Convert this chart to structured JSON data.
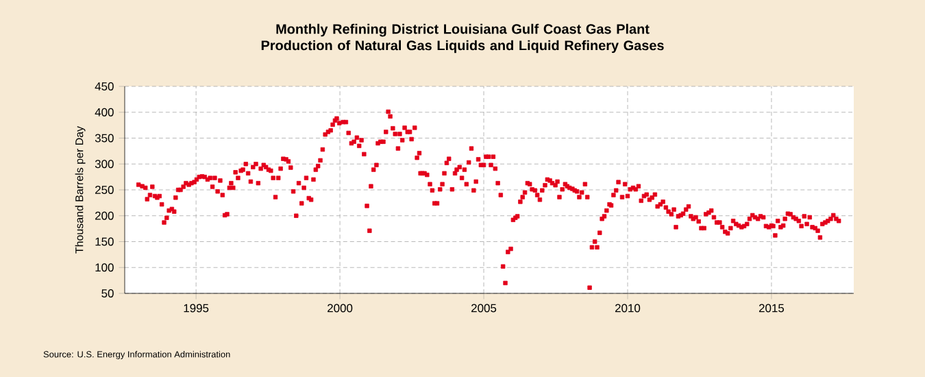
{
  "chart_data": {
    "type": "scatter",
    "title": "Monthly Refining District Louisiana Gulf Coast Gas Plant Production of Natural Gas Liquids and Liquid Refinery Gases",
    "ylabel": "Thousand Barrels per Day",
    "annotations": [
      "Source: U.S. Energy Information Administration"
    ],
    "x": [
      1993.0,
      1993.13,
      1993.24,
      1993.3,
      1993.4,
      1993.48,
      1993.57,
      1993.65,
      1993.73,
      1993.81,
      1993.89,
      1993.98,
      1994.06,
      1994.16,
      1994.24,
      1994.29,
      1994.38,
      1994.46,
      1994.56,
      1994.65,
      1994.75,
      1994.84,
      1994.94,
      1995.02,
      1995.11,
      1995.21,
      1995.3,
      1995.4,
      1995.49,
      1995.57,
      1995.65,
      1995.75,
      1995.84,
      1995.92,
      1996.0,
      1996.08,
      1996.16,
      1996.22,
      1996.29,
      1996.37,
      1996.46,
      1996.56,
      1996.63,
      1996.73,
      1996.81,
      1996.9,
      1996.98,
      1997.08,
      1997.16,
      1997.25,
      1997.35,
      1997.43,
      1997.52,
      1997.6,
      1997.68,
      1997.76,
      1997.86,
      1997.94,
      1998.03,
      1998.13,
      1998.21,
      1998.29,
      1998.38,
      1998.48,
      1998.57,
      1998.67,
      1998.75,
      1998.83,
      1998.92,
      1999.0,
      1999.08,
      1999.16,
      1999.24,
      1999.32,
      1999.4,
      1999.49,
      1999.59,
      1999.68,
      1999.75,
      1999.83,
      1999.89,
      1999.98,
      2000.11,
      2000.21,
      2000.3,
      2000.4,
      2000.49,
      2000.59,
      2000.67,
      2000.75,
      2000.84,
      2000.94,
      2001.03,
      2001.08,
      2001.17,
      2001.27,
      2001.32,
      2001.41,
      2001.51,
      2001.6,
      2001.68,
      2001.75,
      2001.84,
      2001.92,
      2002.02,
      2002.08,
      2002.17,
      2002.25,
      2002.35,
      2002.43,
      2002.49,
      2002.6,
      2002.68,
      2002.76,
      2002.8,
      2002.86,
      2002.94,
      2003.03,
      2003.13,
      2003.21,
      2003.29,
      2003.38,
      2003.48,
      2003.56,
      2003.63,
      2003.71,
      2003.79,
      2003.9,
      2004.0,
      2004.06,
      2004.16,
      2004.24,
      2004.33,
      2004.4,
      2004.48,
      2004.57,
      2004.65,
      2004.73,
      2004.81,
      2004.9,
      2005.0,
      2005.08,
      2005.17,
      2005.25,
      2005.33,
      2005.4,
      2005.49,
      2005.59,
      2005.67,
      2005.75,
      2005.84,
      2005.94,
      2006.02,
      2006.1,
      2006.17,
      2006.27,
      2006.35,
      2006.43,
      2006.52,
      2006.6,
      2006.68,
      2006.78,
      2006.86,
      2006.95,
      2007.03,
      2007.13,
      2007.21,
      2007.3,
      2007.38,
      2007.49,
      2007.56,
      2007.63,
      2007.73,
      2007.83,
      2007.9,
      2007.98,
      2008.08,
      2008.16,
      2008.24,
      2008.32,
      2008.41,
      2008.52,
      2008.6,
      2008.68,
      2008.76,
      2008.86,
      2008.94,
      2009.03,
      2009.11,
      2009.19,
      2009.27,
      2009.37,
      2009.43,
      2009.51,
      2009.6,
      2009.68,
      2009.81,
      2009.91,
      2010.0,
      2010.09,
      2010.19,
      2010.28,
      2010.38,
      2010.47,
      2010.57,
      2010.66,
      2010.76,
      2010.85,
      2010.95,
      2011.04,
      2011.14,
      2011.23,
      2011.33,
      2011.42,
      2011.52,
      2011.61,
      2011.68,
      2011.76,
      2011.85,
      2011.93,
      2012.03,
      2012.12,
      2012.2,
      2012.28,
      2012.37,
      2012.47,
      2012.56,
      2012.66,
      2012.72,
      2012.82,
      2012.91,
      2013.0,
      2013.1,
      2013.2,
      2013.29,
      2013.39,
      2013.48,
      2013.58,
      2013.67,
      2013.77,
      2013.86,
      2013.96,
      2014.05,
      2014.15,
      2014.24,
      2014.34,
      2014.43,
      2014.53,
      2014.62,
      2014.72,
      2014.81,
      2014.91,
      2015.0,
      2015.06,
      2015.13,
      2015.22,
      2015.32,
      2015.41,
      2015.47,
      2015.57,
      2015.66,
      2015.76,
      2015.85,
      2015.95,
      2016.04,
      2016.14,
      2016.23,
      2016.33,
      2016.42,
      2016.52,
      2016.61,
      2016.69,
      2016.77,
      2016.87,
      2016.96,
      2017.06,
      2017.15,
      2017.25,
      2017.34
    ],
    "series": [
      {
        "color": "#e3001b",
        "values": [
          260,
          257,
          254,
          232,
          240,
          256,
          238,
          235,
          238,
          222,
          187,
          196,
          210,
          213,
          208,
          235,
          250,
          250,
          256,
          263,
          260,
          263,
          265,
          270,
          275,
          276,
          275,
          270,
          273,
          256,
          273,
          247,
          268,
          240,
          201,
          203,
          254,
          263,
          254,
          284,
          273,
          287,
          289,
          300,
          282,
          266,
          294,
          300,
          263,
          291,
          298,
          294,
          289,
          287,
          273,
          236,
          273,
          291,
          310,
          309,
          305,
          293,
          247,
          200,
          263,
          224,
          254,
          273,
          234,
          231,
          270,
          289,
          296,
          307,
          328,
          357,
          362,
          365,
          376,
          384,
          388,
          379,
          381,
          381,
          360,
          340,
          343,
          351,
          335,
          346,
          319,
          219,
          171,
          257,
          289,
          298,
          340,
          343,
          343,
          362,
          401,
          392,
          369,
          358,
          330,
          358,
          346,
          370,
          362,
          362,
          348,
          370,
          312,
          321,
          282,
          282,
          282,
          279,
          261,
          249,
          224,
          224,
          251,
          261,
          282,
          302,
          310,
          251,
          282,
          289,
          294,
          273,
          289,
          261,
          303,
          330,
          249,
          266,
          309,
          298,
          298,
          314,
          314,
          298,
          314,
          291,
          263,
          240,
          102,
          70,
          130,
          136,
          192,
          196,
          199,
          227,
          236,
          245,
          263,
          261,
          251,
          249,
          240,
          231,
          249,
          259,
          270,
          268,
          263,
          259,
          266,
          236,
          251,
          261,
          257,
          254,
          252,
          249,
          247,
          236,
          245,
          261,
          236,
          61,
          139,
          150,
          139,
          167,
          194,
          199,
          210,
          222,
          220,
          240,
          249,
          265,
          236,
          261,
          238,
          251,
          254,
          251,
          257,
          229,
          238,
          241,
          231,
          235,
          241,
          218,
          222,
          227,
          216,
          208,
          203,
          212,
          178,
          199,
          201,
          204,
          212,
          218,
          199,
          194,
          197,
          189,
          176,
          176,
          203,
          206,
          210,
          197,
          187,
          187,
          178,
          169,
          166,
          176,
          190,
          184,
          181,
          178,
          180,
          184,
          194,
          201,
          197,
          194,
          199,
          197,
          180,
          178,
          181,
          180,
          162,
          190,
          178,
          181,
          194,
          204,
          203,
          197,
          194,
          190,
          180,
          199,
          184,
          197,
          178,
          176,
          171,
          158,
          184,
          187,
          190,
          194,
          201,
          194,
          190
        ]
      }
    ],
    "xlim": [
      1992.52,
      2017.86
    ],
    "ylim": [
      50,
      450
    ],
    "xticks": [
      1995,
      2000,
      2005,
      2010,
      2015
    ],
    "yticks": [
      50,
      100,
      150,
      200,
      250,
      300,
      350,
      400,
      450
    ],
    "grid": true,
    "marker": "square"
  }
}
